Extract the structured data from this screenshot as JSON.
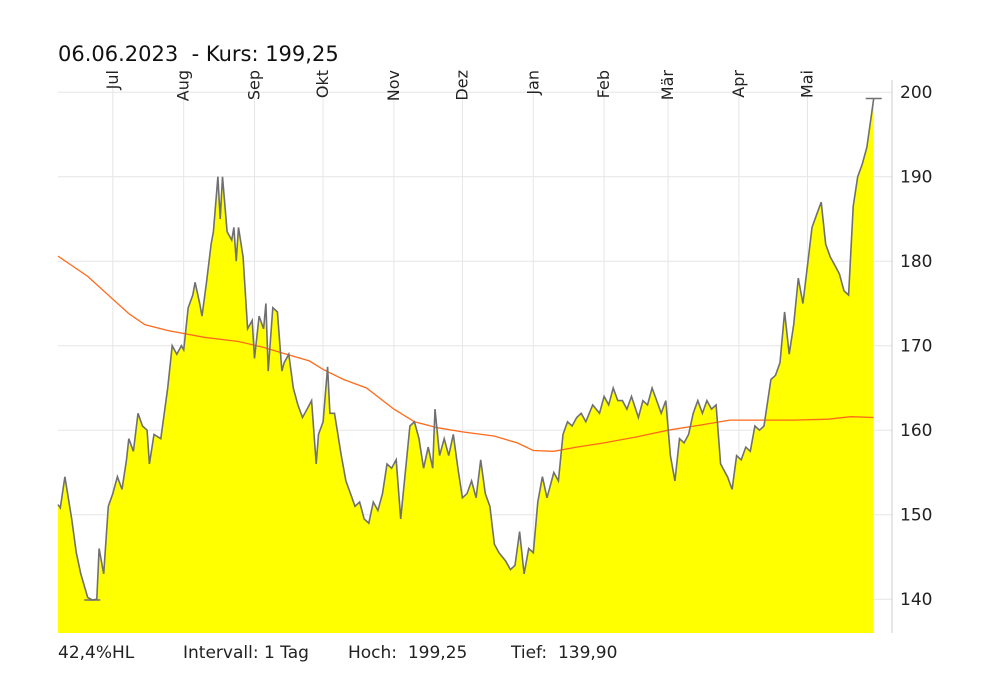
{
  "title": "06.06.2023  - Kurs: 199,25",
  "footer": {
    "range": "42,4%HL",
    "interval": "Intervall: 1 Tag",
    "high": "Hoch:  199,25",
    "low": "Tief:  139,90"
  },
  "chart_data": {
    "type": "area",
    "title": "06.06.2023  - Kurs: 199,25",
    "xlabel": "",
    "ylabel": "",
    "ylim": [
      136,
      200.5
    ],
    "yticks": [
      140,
      150,
      160,
      170,
      180,
      190,
      200
    ],
    "ytick_labels": [
      "140",
      "150",
      "160",
      "170",
      "180",
      "190",
      "200"
    ],
    "grid": true,
    "x_axis_position": "top",
    "y_axis_position": "right",
    "month_labels": [
      {
        "label": "Jul",
        "date": "2022-07-01"
      },
      {
        "label": "Aug",
        "date": "2022-08-01"
      },
      {
        "label": "Sep",
        "date": "2022-09-01"
      },
      {
        "label": "Okt",
        "date": "2022-10-01"
      },
      {
        "label": "Nov",
        "date": "2022-11-01"
      },
      {
        "label": "Dez",
        "date": "2022-12-01"
      },
      {
        "label": "Jan",
        "date": "2023-01-01"
      },
      {
        "label": "Feb",
        "date": "2023-02-01"
      },
      {
        "label": "Mär",
        "date": "2023-03-01"
      },
      {
        "label": "Apr",
        "date": "2023-04-01"
      },
      {
        "label": "Mai",
        "date": "2023-05-01"
      }
    ],
    "x_range": [
      "2022-06-07",
      "2023-06-07"
    ],
    "colors": {
      "fill": "#ffff00",
      "price_line": "#707070",
      "moving_average": "#ff6a1a",
      "grid": "#e6e6e6"
    },
    "series": [
      {
        "role": "price",
        "points": [
          [
            "2022-06-07",
            151.2
          ],
          [
            "2022-06-08",
            150.8
          ],
          [
            "2022-06-10",
            154.5
          ],
          [
            "2022-06-13",
            149.5
          ],
          [
            "2022-06-15",
            145.5
          ],
          [
            "2022-06-17",
            143.0
          ],
          [
            "2022-06-20",
            140.2
          ],
          [
            "2022-06-22",
            139.9
          ],
          [
            "2022-06-24",
            140.0
          ],
          [
            "2022-06-25",
            146.0
          ],
          [
            "2022-06-27",
            143.0
          ],
          [
            "2022-06-29",
            151.0
          ],
          [
            "2022-07-01",
            152.5
          ],
          [
            "2022-07-03",
            154.5
          ],
          [
            "2022-07-05",
            153.0
          ],
          [
            "2022-07-07",
            156.5
          ],
          [
            "2022-07-08",
            159.0
          ],
          [
            "2022-07-10",
            157.5
          ],
          [
            "2022-07-12",
            162.0
          ],
          [
            "2022-07-14",
            160.5
          ],
          [
            "2022-07-16",
            160.0
          ],
          [
            "2022-07-17",
            156.0
          ],
          [
            "2022-07-19",
            159.5
          ],
          [
            "2022-07-22",
            159.0
          ],
          [
            "2022-07-25",
            165.0
          ],
          [
            "2022-07-27",
            170.0
          ],
          [
            "2022-07-29",
            169.0
          ],
          [
            "2022-07-31",
            170.0
          ],
          [
            "2022-08-01",
            169.5
          ],
          [
            "2022-08-03",
            174.5
          ],
          [
            "2022-08-05",
            176.0
          ],
          [
            "2022-08-06",
            177.5
          ],
          [
            "2022-08-08",
            175.0
          ],
          [
            "2022-08-09",
            173.5
          ],
          [
            "2022-08-11",
            177.5
          ],
          [
            "2022-08-13",
            182.0
          ],
          [
            "2022-08-14",
            183.5
          ],
          [
            "2022-08-16",
            190.0
          ],
          [
            "2022-08-17",
            185.0
          ],
          [
            "2022-08-18",
            190.0
          ],
          [
            "2022-08-20",
            183.5
          ],
          [
            "2022-08-22",
            182.5
          ],
          [
            "2022-08-23",
            184.0
          ],
          [
            "2022-08-24",
            180.0
          ],
          [
            "2022-08-25",
            184.0
          ],
          [
            "2022-08-27",
            180.5
          ],
          [
            "2022-08-29",
            172.0
          ],
          [
            "2022-08-31",
            173.0
          ],
          [
            "2022-09-01",
            168.5
          ],
          [
            "2022-09-03",
            173.5
          ],
          [
            "2022-09-05",
            172.0
          ],
          [
            "2022-09-06",
            175.0
          ],
          [
            "2022-09-07",
            167.0
          ],
          [
            "2022-09-09",
            174.5
          ],
          [
            "2022-09-11",
            174.0
          ],
          [
            "2022-09-13",
            167.0
          ],
          [
            "2022-09-14",
            168.0
          ],
          [
            "2022-09-16",
            169.0
          ],
          [
            "2022-09-18",
            165.0
          ],
          [
            "2022-09-20",
            163.0
          ],
          [
            "2022-09-22",
            161.5
          ],
          [
            "2022-09-24",
            162.5
          ],
          [
            "2022-09-26",
            163.5
          ],
          [
            "2022-09-28",
            156.0
          ],
          [
            "2022-09-29",
            159.5
          ],
          [
            "2022-10-01",
            161.0
          ],
          [
            "2022-10-03",
            167.5
          ],
          [
            "2022-10-04",
            162.0
          ],
          [
            "2022-10-06",
            162.0
          ],
          [
            "2022-10-09",
            157.0
          ],
          [
            "2022-10-11",
            154.0
          ],
          [
            "2022-10-13",
            152.5
          ],
          [
            "2022-10-15",
            151.0
          ],
          [
            "2022-10-17",
            151.5
          ],
          [
            "2022-10-19",
            149.5
          ],
          [
            "2022-10-21",
            149.0
          ],
          [
            "2022-10-23",
            151.5
          ],
          [
            "2022-10-25",
            150.5
          ],
          [
            "2022-10-27",
            152.5
          ],
          [
            "2022-10-29",
            156.0
          ],
          [
            "2022-10-31",
            155.5
          ],
          [
            "2022-11-02",
            156.5
          ],
          [
            "2022-11-04",
            149.5
          ],
          [
            "2022-11-06",
            155.0
          ],
          [
            "2022-11-08",
            160.5
          ],
          [
            "2022-11-10",
            161.0
          ],
          [
            "2022-11-12",
            159.0
          ],
          [
            "2022-11-14",
            155.5
          ],
          [
            "2022-11-16",
            158.0
          ],
          [
            "2022-11-18",
            155.5
          ],
          [
            "2022-11-19",
            162.5
          ],
          [
            "2022-11-21",
            157.0
          ],
          [
            "2022-11-23",
            159.0
          ],
          [
            "2022-11-25",
            157.0
          ],
          [
            "2022-11-27",
            159.5
          ],
          [
            "2022-11-29",
            155.5
          ],
          [
            "2022-12-01",
            152.0
          ],
          [
            "2022-12-03",
            152.5
          ],
          [
            "2022-12-05",
            154.0
          ],
          [
            "2022-12-07",
            152.0
          ],
          [
            "2022-12-09",
            156.5
          ],
          [
            "2022-12-11",
            152.5
          ],
          [
            "2022-12-13",
            151.0
          ],
          [
            "2022-12-15",
            146.5
          ],
          [
            "2022-12-17",
            145.5
          ],
          [
            "2022-12-20",
            144.5
          ],
          [
            "2022-12-22",
            143.5
          ],
          [
            "2022-12-24",
            144.0
          ],
          [
            "2022-12-26",
            148.0
          ],
          [
            "2022-12-28",
            143.0
          ],
          [
            "2022-12-30",
            146.0
          ],
          [
            "2023-01-01",
            145.5
          ],
          [
            "2023-01-03",
            151.5
          ],
          [
            "2023-01-05",
            154.5
          ],
          [
            "2023-01-07",
            152.0
          ],
          [
            "2023-01-10",
            155.0
          ],
          [
            "2023-01-12",
            154.0
          ],
          [
            "2023-01-14",
            159.5
          ],
          [
            "2023-01-16",
            161.0
          ],
          [
            "2023-01-18",
            160.5
          ],
          [
            "2023-01-20",
            161.5
          ],
          [
            "2023-01-22",
            162.0
          ],
          [
            "2023-01-24",
            161.0
          ],
          [
            "2023-01-27",
            163.0
          ],
          [
            "2023-01-30",
            162.0
          ],
          [
            "2023-02-01",
            164.0
          ],
          [
            "2023-02-03",
            163.0
          ],
          [
            "2023-02-05",
            165.0
          ],
          [
            "2023-02-07",
            163.5
          ],
          [
            "2023-02-09",
            163.5
          ],
          [
            "2023-02-11",
            162.5
          ],
          [
            "2023-02-13",
            164.0
          ],
          [
            "2023-02-16",
            161.5
          ],
          [
            "2023-02-18",
            163.5
          ],
          [
            "2023-02-20",
            163.0
          ],
          [
            "2023-02-22",
            165.0
          ],
          [
            "2023-02-24",
            163.5
          ],
          [
            "2023-02-26",
            162.0
          ],
          [
            "2023-02-28",
            163.5
          ],
          [
            "2023-03-02",
            157.0
          ],
          [
            "2023-03-04",
            154.0
          ],
          [
            "2023-03-06",
            159.0
          ],
          [
            "2023-03-08",
            158.5
          ],
          [
            "2023-03-10",
            159.5
          ],
          [
            "2023-03-12",
            162.0
          ],
          [
            "2023-03-14",
            163.5
          ],
          [
            "2023-03-16",
            162.0
          ],
          [
            "2023-03-18",
            163.5
          ],
          [
            "2023-03-20",
            162.5
          ],
          [
            "2023-03-22",
            163.0
          ],
          [
            "2023-03-24",
            156.0
          ],
          [
            "2023-03-27",
            154.5
          ],
          [
            "2023-03-29",
            153.0
          ],
          [
            "2023-03-31",
            157.0
          ],
          [
            "2023-04-02",
            156.5
          ],
          [
            "2023-04-04",
            158.0
          ],
          [
            "2023-04-06",
            157.5
          ],
          [
            "2023-04-08",
            160.5
          ],
          [
            "2023-04-10",
            160.0
          ],
          [
            "2023-04-12",
            160.5
          ],
          [
            "2023-04-15",
            166.0
          ],
          [
            "2023-04-17",
            166.5
          ],
          [
            "2023-04-19",
            168.0
          ],
          [
            "2023-04-21",
            174.0
          ],
          [
            "2023-04-23",
            169.0
          ],
          [
            "2023-04-25",
            172.5
          ],
          [
            "2023-04-27",
            178.0
          ],
          [
            "2023-04-29",
            175.0
          ],
          [
            "2023-05-01",
            179.5
          ],
          [
            "2023-05-03",
            184.0
          ],
          [
            "2023-05-05",
            185.5
          ],
          [
            "2023-05-07",
            187.0
          ],
          [
            "2023-05-09",
            182.0
          ],
          [
            "2023-05-11",
            180.5
          ],
          [
            "2023-05-13",
            179.5
          ],
          [
            "2023-05-15",
            178.5
          ],
          [
            "2023-05-17",
            176.5
          ],
          [
            "2023-05-19",
            176.0
          ],
          [
            "2023-05-21",
            186.5
          ],
          [
            "2023-05-23",
            190.0
          ],
          [
            "2023-05-25",
            191.5
          ],
          [
            "2023-05-27",
            193.5
          ],
          [
            "2023-05-30",
            199.25
          ]
        ]
      },
      {
        "role": "moving_average",
        "points": [
          [
            "2022-06-07",
            180.6
          ],
          [
            "2022-06-20",
            178.2
          ],
          [
            "2022-07-01",
            175.5
          ],
          [
            "2022-07-08",
            173.8
          ],
          [
            "2022-07-15",
            172.5
          ],
          [
            "2022-07-25",
            171.8
          ],
          [
            "2022-08-10",
            171.0
          ],
          [
            "2022-08-25",
            170.5
          ],
          [
            "2022-09-05",
            169.8
          ],
          [
            "2022-09-15",
            169.0
          ],
          [
            "2022-09-25",
            168.2
          ],
          [
            "2022-10-01",
            167.2
          ],
          [
            "2022-10-10",
            166.0
          ],
          [
            "2022-10-20",
            165.0
          ],
          [
            "2022-11-01",
            162.5
          ],
          [
            "2022-11-10",
            161.0
          ],
          [
            "2022-11-20",
            160.3
          ],
          [
            "2022-12-01",
            159.8
          ],
          [
            "2022-12-15",
            159.3
          ],
          [
            "2022-12-25",
            158.5
          ],
          [
            "2023-01-01",
            157.6
          ],
          [
            "2023-01-10",
            157.5
          ],
          [
            "2023-01-20",
            158.0
          ],
          [
            "2023-02-01",
            158.5
          ],
          [
            "2023-02-15",
            159.2
          ],
          [
            "2023-03-01",
            160.0
          ],
          [
            "2023-03-15",
            160.6
          ],
          [
            "2023-03-28",
            161.2
          ],
          [
            "2023-04-10",
            161.2
          ],
          [
            "2023-04-25",
            161.2
          ],
          [
            "2023-05-10",
            161.3
          ],
          [
            "2023-05-20",
            161.6
          ],
          [
            "2023-05-30",
            161.5
          ]
        ]
      }
    ]
  }
}
